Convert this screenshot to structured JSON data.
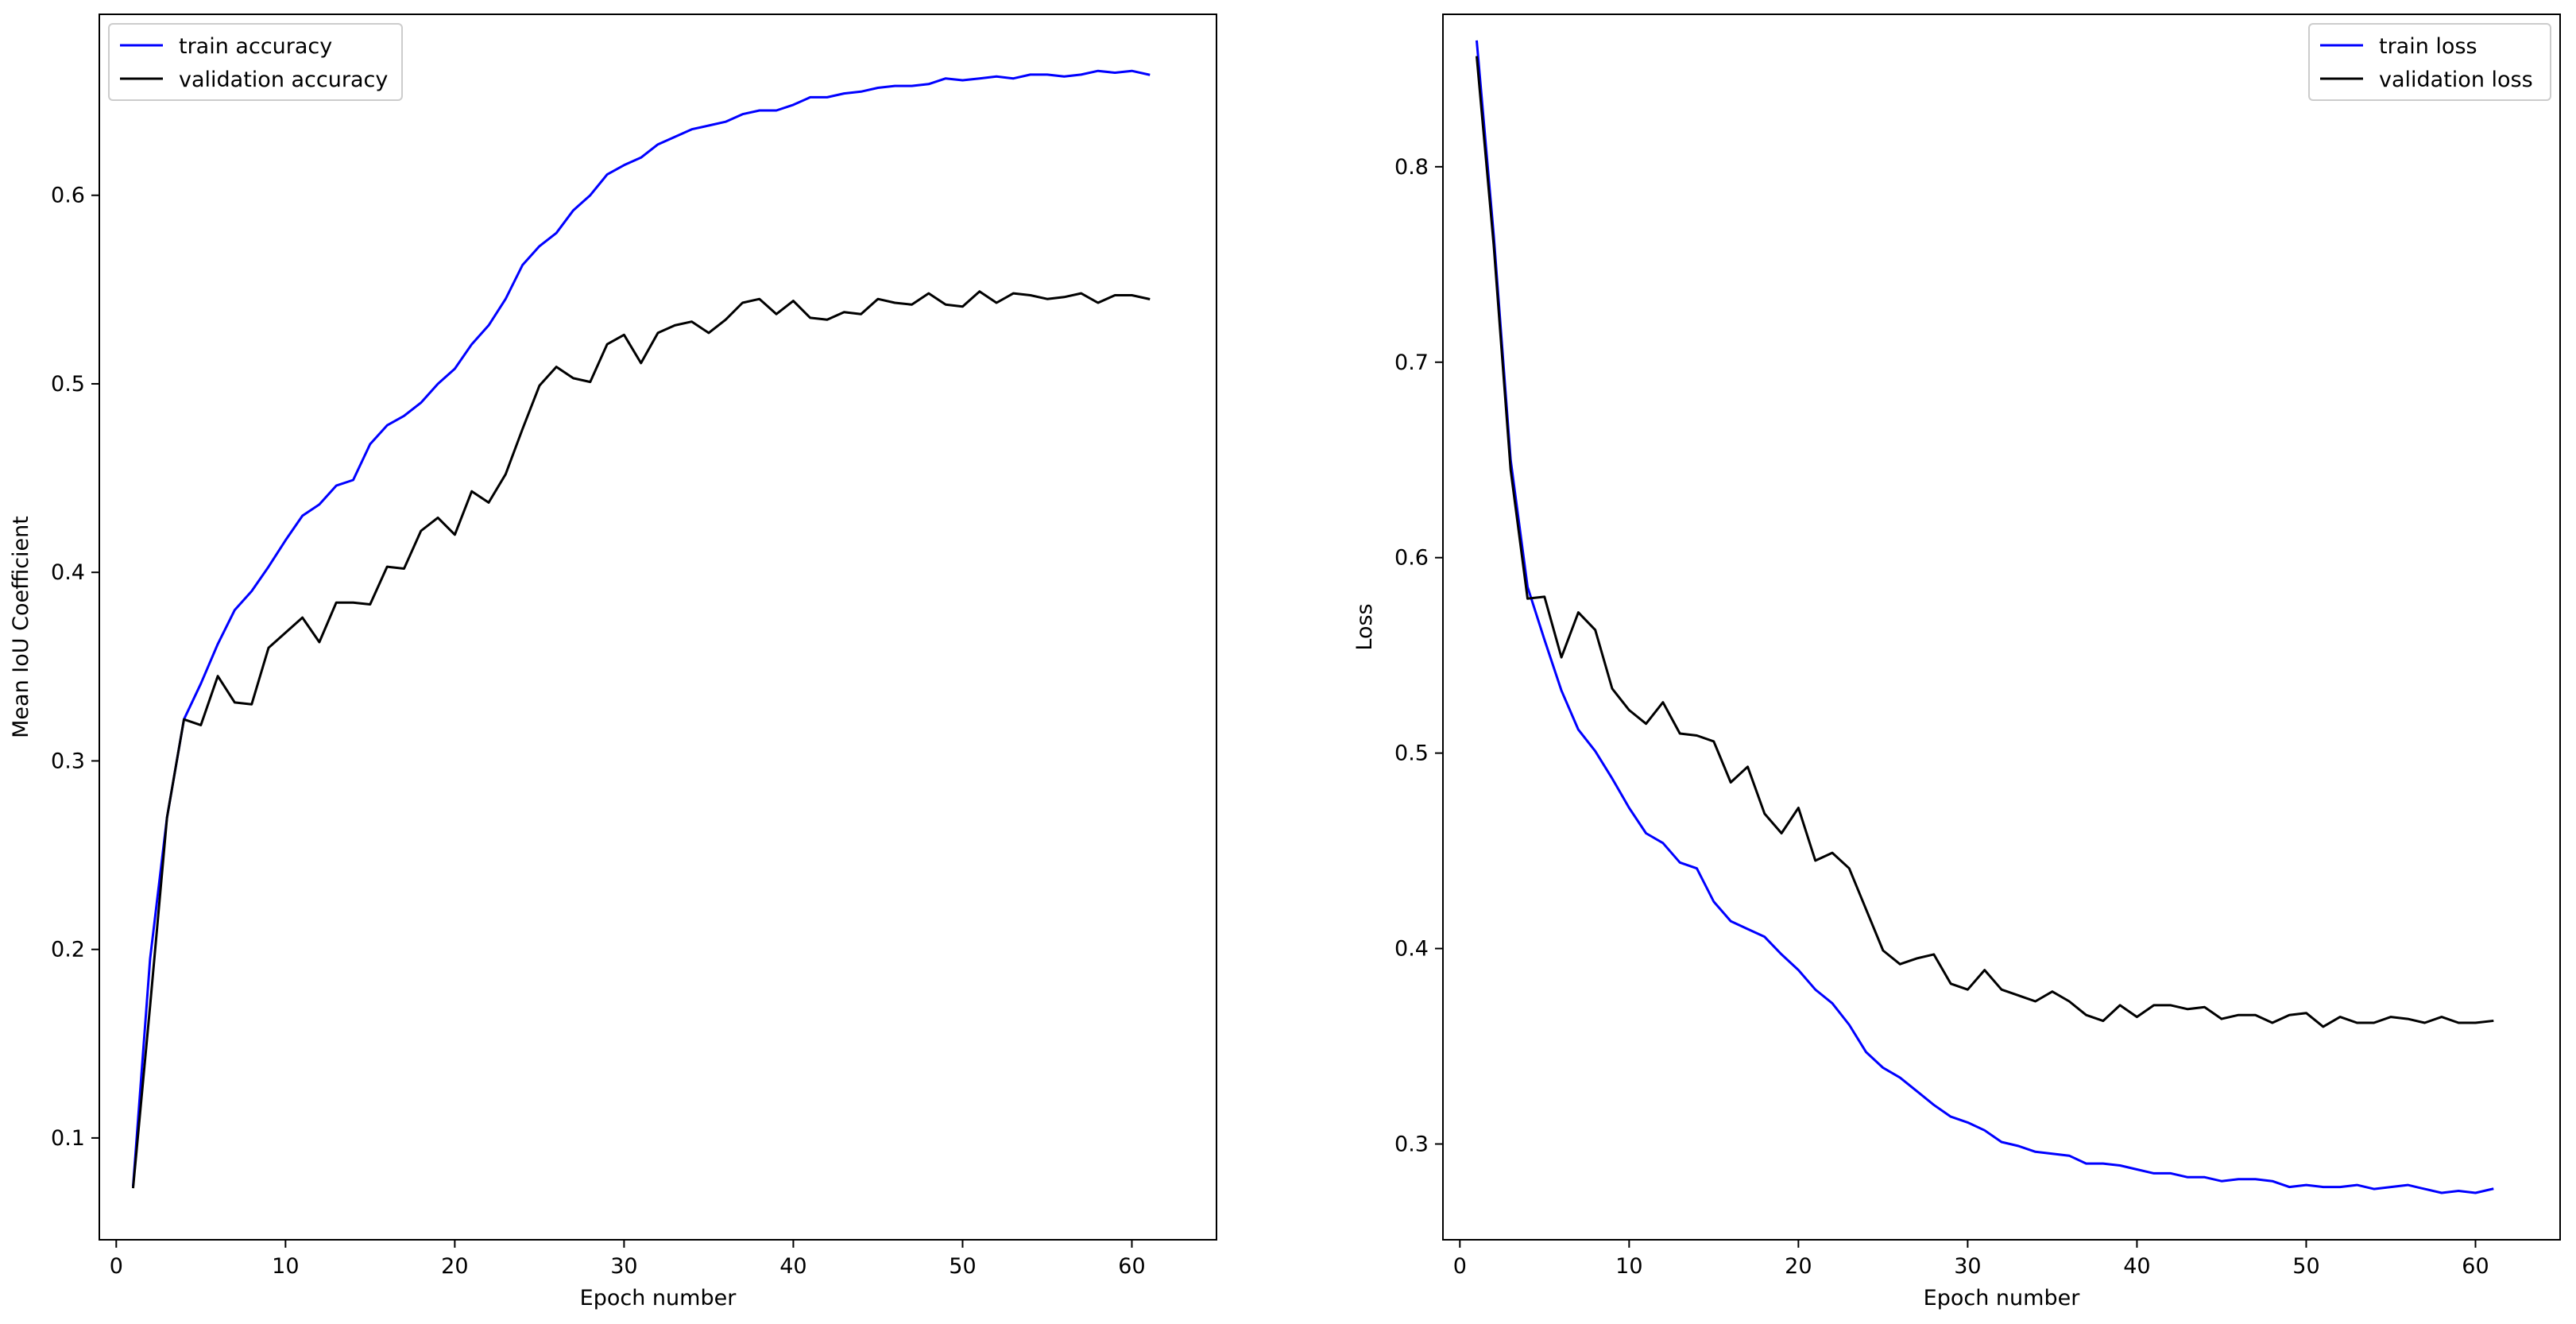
{
  "chart_data": [
    {
      "type": "line",
      "xlabel": "Epoch number",
      "ylabel": "Mean IoU Coefficient",
      "xlim": [
        -1,
        65
      ],
      "ylim": [
        0.046,
        0.696
      ],
      "xticks": [
        0,
        10,
        20,
        30,
        40,
        50,
        60
      ],
      "yticks": [
        0.1,
        0.2,
        0.3,
        0.4,
        0.5,
        0.6
      ],
      "grid": false,
      "legend_position": "top-left",
      "x": [
        1,
        2,
        3,
        4,
        5,
        6,
        7,
        8,
        9,
        10,
        11,
        12,
        13,
        14,
        15,
        16,
        17,
        18,
        19,
        20,
        21,
        22,
        23,
        24,
        25,
        26,
        27,
        28,
        29,
        30,
        31,
        32,
        33,
        34,
        35,
        36,
        37,
        38,
        39,
        40,
        41,
        42,
        43,
        44,
        45,
        46,
        47,
        48,
        49,
        50,
        51,
        52,
        53,
        54,
        55,
        56,
        57,
        58,
        59,
        60,
        61
      ],
      "series": [
        {
          "name": "train accuracy",
          "color": "#0000ff",
          "values": [
            0.075,
            0.195,
            0.27,
            0.322,
            0.341,
            0.362,
            0.38,
            0.39,
            0.403,
            0.417,
            0.43,
            0.436,
            0.446,
            0.449,
            0.468,
            0.478,
            0.483,
            0.49,
            0.5,
            0.508,
            0.521,
            0.531,
            0.545,
            0.563,
            0.573,
            0.58,
            0.592,
            0.6,
            0.611,
            0.616,
            0.62,
            0.627,
            0.631,
            0.635,
            0.637,
            0.639,
            0.643,
            0.645,
            0.645,
            0.648,
            0.652,
            0.652,
            0.654,
            0.655,
            0.657,
            0.658,
            0.658,
            0.659,
            0.662,
            0.661,
            0.662,
            0.663,
            0.662,
            0.664,
            0.664,
            0.663,
            0.664,
            0.666,
            0.665,
            0.666,
            0.664
          ]
        },
        {
          "name": "validation accuracy",
          "color": "#000000",
          "values": [
            0.074,
            0.17,
            0.27,
            0.322,
            0.319,
            0.345,
            0.331,
            0.33,
            0.36,
            0.368,
            0.376,
            0.363,
            0.384,
            0.384,
            0.383,
            0.403,
            0.402,
            0.422,
            0.429,
            0.42,
            0.443,
            0.437,
            0.452,
            0.476,
            0.499,
            0.509,
            0.503,
            0.501,
            0.521,
            0.526,
            0.511,
            0.527,
            0.531,
            0.533,
            0.527,
            0.534,
            0.543,
            0.545,
            0.537,
            0.544,
            0.535,
            0.534,
            0.538,
            0.537,
            0.545,
            0.543,
            0.542,
            0.548,
            0.542,
            0.541,
            0.549,
            0.543,
            0.548,
            0.547,
            0.545,
            0.546,
            0.548,
            0.543,
            0.547,
            0.547,
            0.545
          ]
        }
      ]
    },
    {
      "type": "line",
      "xlabel": "Epoch number",
      "ylabel": "Loss",
      "xlim": [
        -1,
        65
      ],
      "ylim": [
        0.251,
        0.878
      ],
      "xticks": [
        0,
        10,
        20,
        30,
        40,
        50,
        60
      ],
      "yticks": [
        0.3,
        0.4,
        0.5,
        0.6,
        0.7,
        0.8
      ],
      "grid": false,
      "legend_position": "top-right",
      "x": [
        1,
        2,
        3,
        4,
        5,
        6,
        7,
        8,
        9,
        10,
        11,
        12,
        13,
        14,
        15,
        16,
        17,
        18,
        19,
        20,
        21,
        22,
        23,
        24,
        25,
        26,
        27,
        28,
        29,
        30,
        31,
        32,
        33,
        34,
        35,
        36,
        37,
        38,
        39,
        40,
        41,
        42,
        43,
        44,
        45,
        46,
        47,
        48,
        49,
        50,
        51,
        52,
        53,
        54,
        55,
        56,
        57,
        58,
        59,
        60,
        61
      ],
      "series": [
        {
          "name": "train loss",
          "color": "#0000ff",
          "values": [
            0.864,
            0.765,
            0.65,
            0.585,
            0.558,
            0.532,
            0.512,
            0.501,
            0.487,
            0.472,
            0.459,
            0.454,
            0.444,
            0.441,
            0.424,
            0.414,
            0.41,
            0.406,
            0.397,
            0.389,
            0.379,
            0.372,
            0.361,
            0.347,
            0.339,
            0.334,
            0.327,
            0.32,
            0.314,
            0.311,
            0.307,
            0.301,
            0.299,
            0.296,
            0.295,
            0.294,
            0.29,
            0.29,
            0.289,
            0.287,
            0.285,
            0.285,
            0.283,
            0.283,
            0.281,
            0.282,
            0.282,
            0.281,
            0.278,
            0.279,
            0.278,
            0.278,
            0.279,
            0.277,
            0.278,
            0.279,
            0.277,
            0.275,
            0.276,
            0.275,
            0.277
          ]
        },
        {
          "name": "validation loss",
          "color": "#000000",
          "values": [
            0.856,
            0.76,
            0.645,
            0.579,
            0.58,
            0.549,
            0.572,
            0.563,
            0.533,
            0.522,
            0.515,
            0.526,
            0.51,
            0.509,
            0.506,
            0.485,
            0.493,
            0.469,
            0.459,
            0.472,
            0.445,
            0.449,
            0.441,
            0.42,
            0.399,
            0.392,
            0.395,
            0.397,
            0.382,
            0.379,
            0.389,
            0.379,
            0.376,
            0.373,
            0.378,
            0.373,
            0.366,
            0.363,
            0.371,
            0.365,
            0.371,
            0.371,
            0.369,
            0.37,
            0.364,
            0.366,
            0.366,
            0.362,
            0.366,
            0.367,
            0.36,
            0.365,
            0.362,
            0.362,
            0.365,
            0.364,
            0.362,
            0.365,
            0.362,
            0.362,
            0.363
          ]
        }
      ]
    }
  ]
}
